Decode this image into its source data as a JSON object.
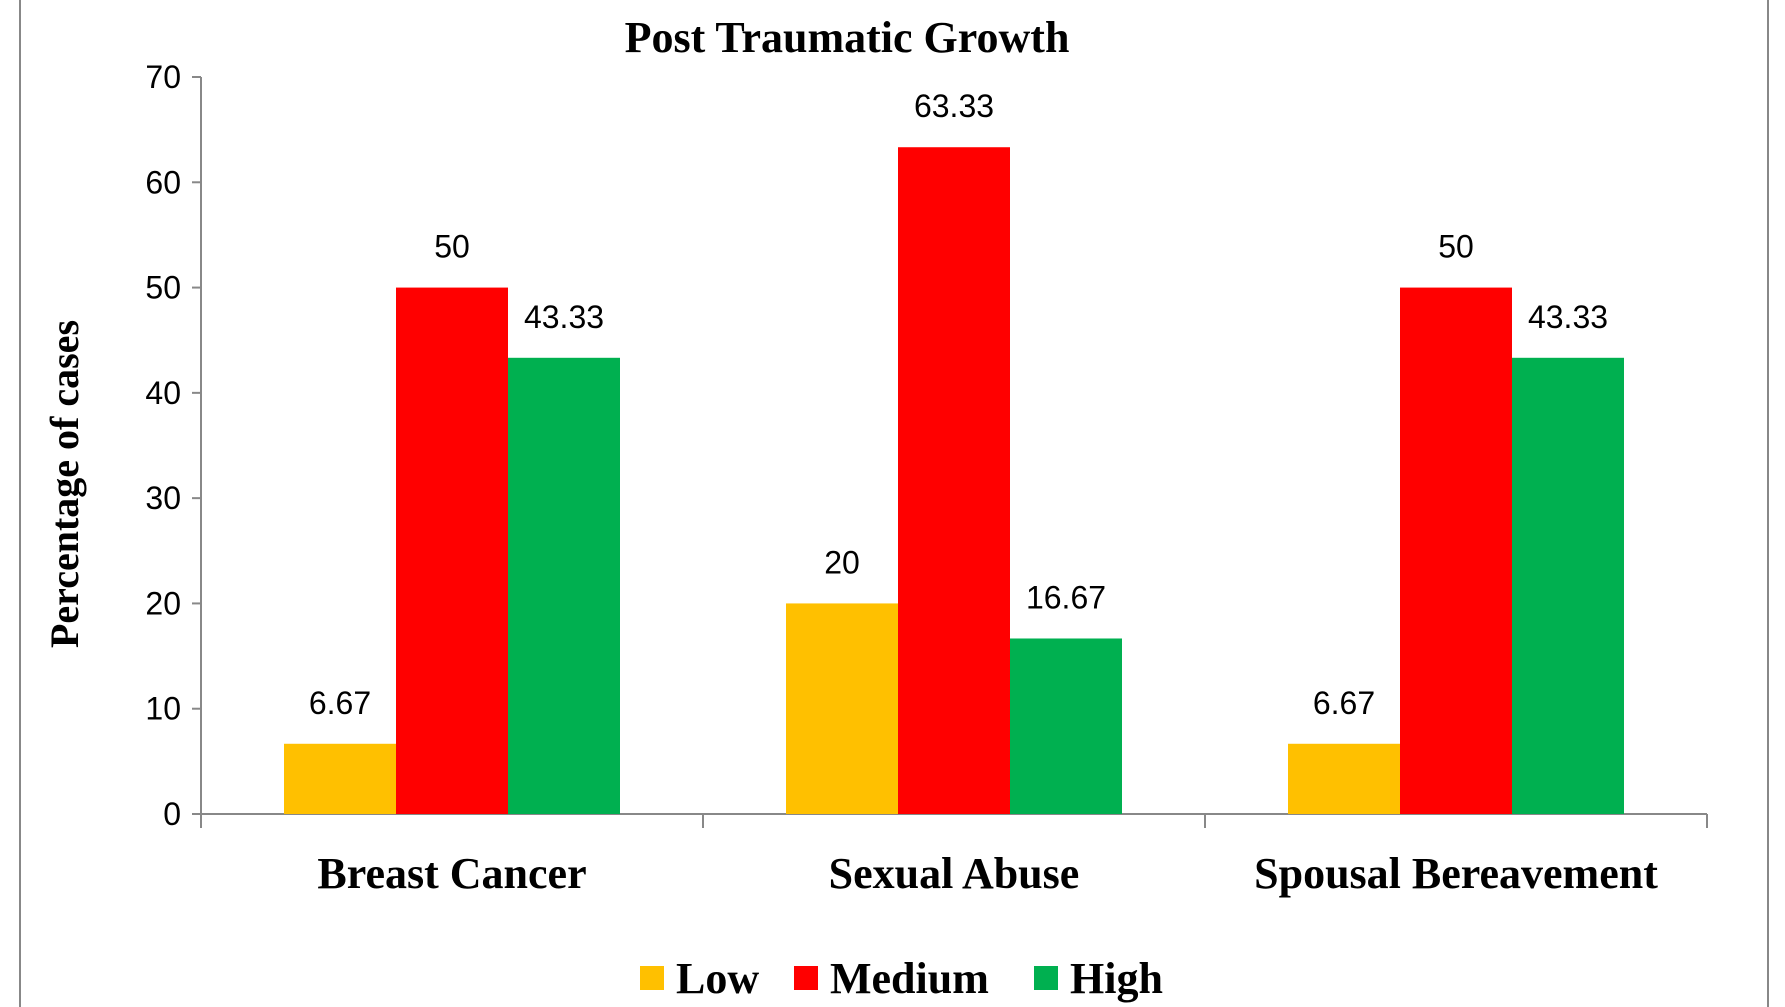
{
  "chart_data": {
    "type": "bar",
    "title": "Post Traumatic Growth",
    "xlabel": "",
    "ylabel": "Percentage of cases",
    "ylim": [
      0,
      70
    ],
    "yticks": [
      "0",
      "10",
      "20",
      "30",
      "40",
      "50",
      "60",
      "70"
    ],
    "grid": false,
    "legend_position": "bottom",
    "categories": [
      "Breast Cancer",
      "Sexual Abuse",
      "Spousal Bereavement"
    ],
    "series": [
      {
        "name": "Low",
        "color": "#FFC000",
        "values": [
          6.67,
          20,
          6.67
        ],
        "labels": [
          "6.67",
          "20",
          "6.67"
        ]
      },
      {
        "name": "Medium",
        "color": "#FF0000",
        "values": [
          50,
          63.33,
          50
        ],
        "labels": [
          "50",
          "63.33",
          "50"
        ]
      },
      {
        "name": "High",
        "color": "#00B050",
        "values": [
          43.33,
          16.67,
          43.33
        ],
        "labels": [
          "43.33",
          "16.67",
          "43.33"
        ]
      }
    ]
  }
}
